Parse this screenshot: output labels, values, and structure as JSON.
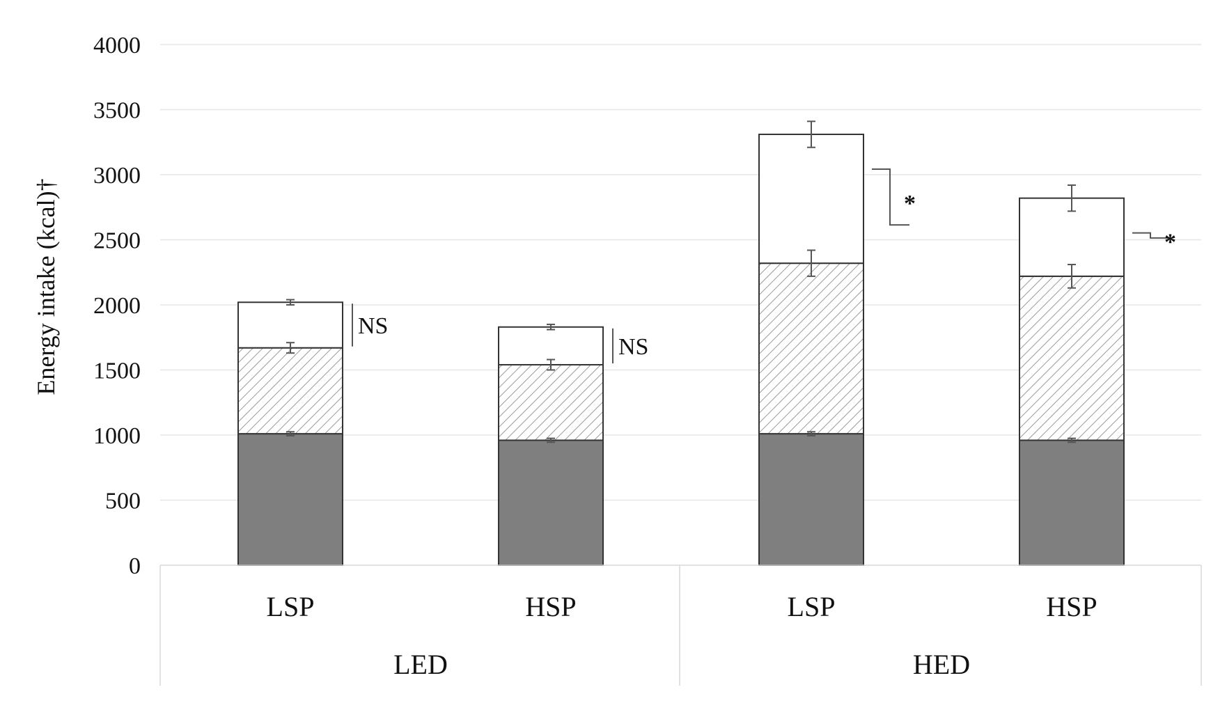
{
  "chart_data": {
    "type": "bar",
    "stacked": true,
    "title": "",
    "ylabel": "Energy intake (kcal)†",
    "ylim": [
      0,
      4000
    ],
    "yticks": [
      "0",
      "500",
      "1000",
      "1500",
      "2000",
      "2500",
      "3000",
      "3500",
      "4000"
    ],
    "categories": [
      "LSP",
      "HSP",
      "LSP",
      "HSP"
    ],
    "groups": [
      {
        "label": "LED",
        "categories": [
          0,
          1
        ]
      },
      {
        "label": "HED",
        "categories": [
          2,
          3
        ]
      }
    ],
    "series": [
      {
        "values": [
          1010,
          960,
          1010,
          960
        ],
        "errors": [
          15,
          15,
          15,
          15
        ],
        "color": "#7f7f7f",
        "fill": "solid"
      },
      {
        "values": [
          660,
          580,
          1310,
          1260
        ],
        "errors": [
          40,
          40,
          100,
          90
        ],
        "color": "#ffffff",
        "fill": "hatched"
      },
      {
        "values": [
          350,
          290,
          990,
          600
        ],
        "errors": [
          20,
          20,
          100,
          100
        ],
        "color": "#ffffff",
        "fill": "plain"
      }
    ],
    "annotations": [
      {
        "category": 0,
        "label": "NS"
      },
      {
        "category": 1,
        "label": "NS"
      },
      {
        "category": 2,
        "label": "*"
      },
      {
        "category": 3,
        "label": "*"
      }
    ],
    "grid": true,
    "legend": "none"
  }
}
